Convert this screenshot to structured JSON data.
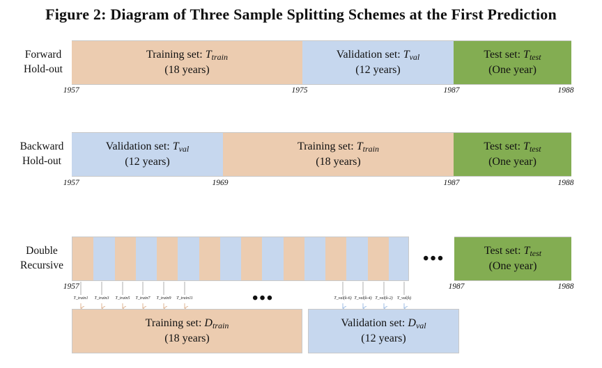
{
  "title": "Figure 2: Diagram of Three Sample Splitting Schemes at the First Prediction",
  "colors": {
    "train": "#ecccb0",
    "validation": "#c6d7ee",
    "test": "#83ad52"
  },
  "forward": {
    "label_line1": "Forward",
    "label_line2": "Hold-out",
    "train_label": "Training set: ",
    "train_symbol": "T",
    "train_sub": "train",
    "train_years": "(18 years)",
    "val_label": "Validation set: ",
    "val_symbol": "T",
    "val_sub": "val",
    "val_years": "(12 years)",
    "test_label": "Test set: ",
    "test_symbol": "T",
    "test_sub": "test",
    "test_years": "(One year)",
    "year_start": "1957",
    "year_split1": "1975",
    "year_split2": "1987",
    "year_end": "1988"
  },
  "backward": {
    "label_line1": "Backward",
    "label_line2": "Hold-out",
    "val_label": "Validation set: ",
    "val_symbol": "T",
    "val_sub": "val",
    "val_years": "(12 years)",
    "train_label": "Training set: ",
    "train_symbol": "T",
    "train_sub": "train",
    "train_years": "(18 years)",
    "test_label": "Test set: ",
    "test_symbol": "T",
    "test_sub": "test",
    "test_years": "(One year)",
    "year_start": "1957",
    "year_split1": "1969",
    "year_split2": "1987",
    "year_end": "1988"
  },
  "double": {
    "label_line1": "Double",
    "label_line2": "Recursive",
    "ellipsis": "•••",
    "test_label": "Test set: ",
    "test_symbol": "T",
    "test_sub": "test",
    "test_years": "(One year)",
    "year_start": "1957",
    "year_test_start": "1987",
    "year_end": "1988",
    "train_arrow_labels": [
      "T_train1",
      "T_train3",
      "T_train5",
      "T_train7",
      "T_train9",
      "T_train11"
    ],
    "val_arrow_labels": [
      "T_val(k-6)",
      "T_val(k-4)",
      "T_val(k-2)",
      "T_val(k)"
    ],
    "middle_ellipsis": "•••",
    "train_box_label": "Training set: ",
    "train_box_symbol": "D",
    "train_box_sub": "train",
    "train_box_years": "(18 years)",
    "val_box_label": "Validation set: ",
    "val_box_symbol": "D",
    "val_box_sub": "val",
    "val_box_years": "(12 years)"
  }
}
